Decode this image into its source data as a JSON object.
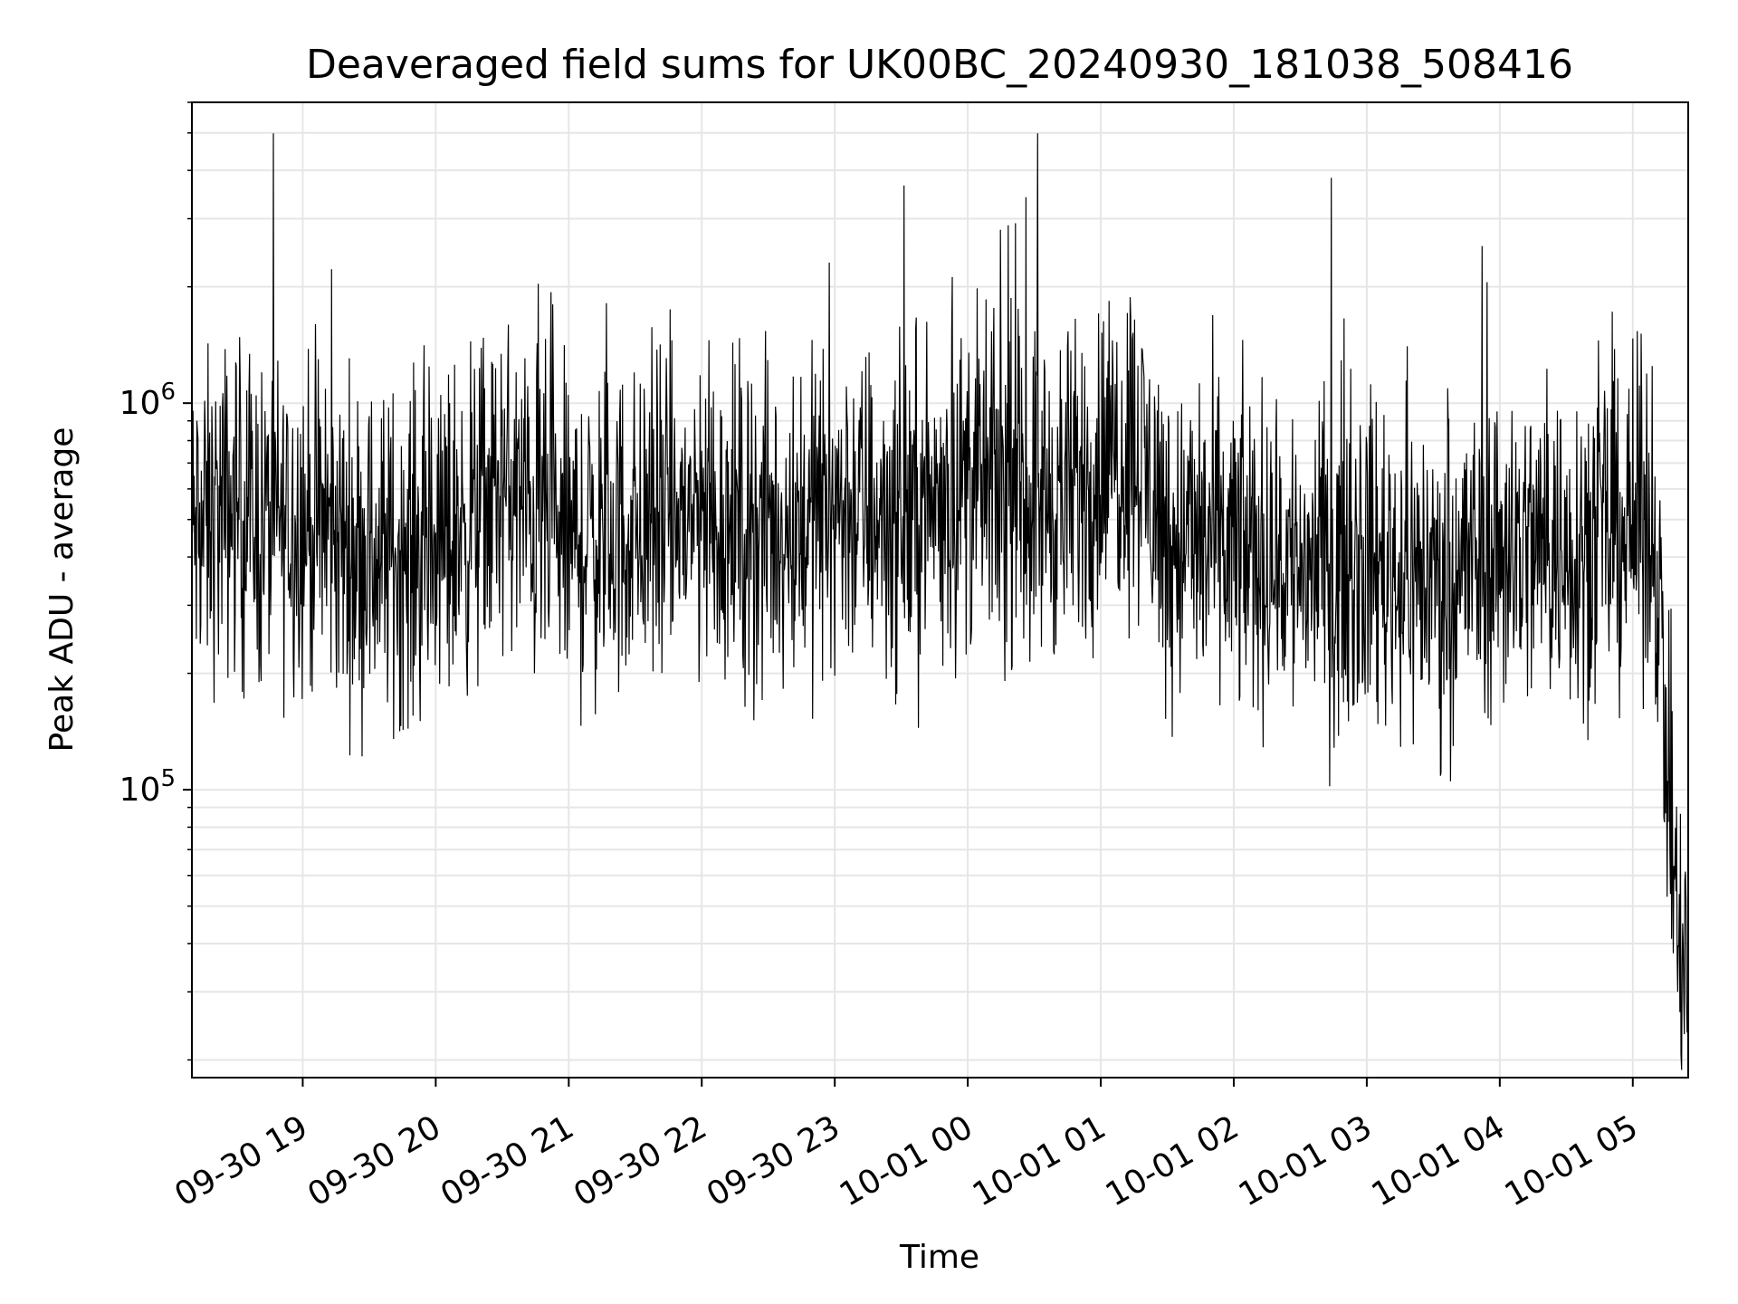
{
  "chart_data": {
    "type": "line",
    "title": "Deaveraged field sums for UK00BC_20240930_181038_508416",
    "xlabel": "Time",
    "ylabel": "Peak ADU - average",
    "yscale": "log",
    "ylim": [
      18000,
      6000000
    ],
    "xlim": [
      "2024-09-30 18:10",
      "2024-10-01 05:25"
    ],
    "grid": true,
    "line_color": "#000000",
    "grid_color": "#e6e6e6",
    "x_ticks": [
      {
        "value": "2024-09-30 19:00",
        "label": "09-30 19"
      },
      {
        "value": "2024-09-30 20:00",
        "label": "09-30 20"
      },
      {
        "value": "2024-09-30 21:00",
        "label": "09-30 21"
      },
      {
        "value": "2024-09-30 22:00",
        "label": "09-30 22"
      },
      {
        "value": "2024-09-30 23:00",
        "label": "09-30 23"
      },
      {
        "value": "2024-10-01 00:00",
        "label": "10-01 00"
      },
      {
        "value": "2024-10-01 01:00",
        "label": "10-01 01"
      },
      {
        "value": "2024-10-01 02:00",
        "label": "10-01 02"
      },
      {
        "value": "2024-10-01 03:00",
        "label": "10-01 03"
      },
      {
        "value": "2024-10-01 04:00",
        "label": "10-01 04"
      },
      {
        "value": "2024-10-01 05:00",
        "label": "10-01 05"
      }
    ],
    "y_major_ticks": [
      {
        "value": 100000,
        "base": "10",
        "exp": "5"
      },
      {
        "value": 1000000,
        "base": "10",
        "exp": "6"
      }
    ],
    "series": [
      {
        "x": [
          "2024-09-30 18:10",
          "2024-09-30 18:30",
          "2024-09-30 18:40",
          "2024-09-30 19:00",
          "2024-09-30 19:30",
          "2024-09-30 20:00",
          "2024-09-30 20:30",
          "2024-09-30 21:00",
          "2024-09-30 21:30",
          "2024-09-30 22:00",
          "2024-09-30 22:30",
          "2024-09-30 23:00",
          "2024-09-30 23:30",
          "2024-10-01 00:00",
          "2024-10-01 00:30",
          "2024-10-01 00:45",
          "2024-10-01 01:00",
          "2024-10-01 01:15",
          "2024-10-01 01:30",
          "2024-10-01 02:00",
          "2024-10-01 02:30",
          "2024-10-01 03:00",
          "2024-10-01 03:30",
          "2024-10-01 04:00",
          "2024-10-01 04:30",
          "2024-10-01 05:00",
          "2024-10-01 05:10",
          "2024-10-01 05:20",
          "2024-10-01 05:25"
        ],
        "y": [
          450000,
          550000,
          480000,
          500000,
          400000,
          420000,
          600000,
          430000,
          470000,
          520000,
          460000,
          550000,
          500000,
          620000,
          580000,
          560000,
          700000,
          800000,
          450000,
          420000,
          380000,
          400000,
          350000,
          420000,
          430000,
          480000,
          500000,
          40000,
          30000
        ]
      }
    ]
  }
}
